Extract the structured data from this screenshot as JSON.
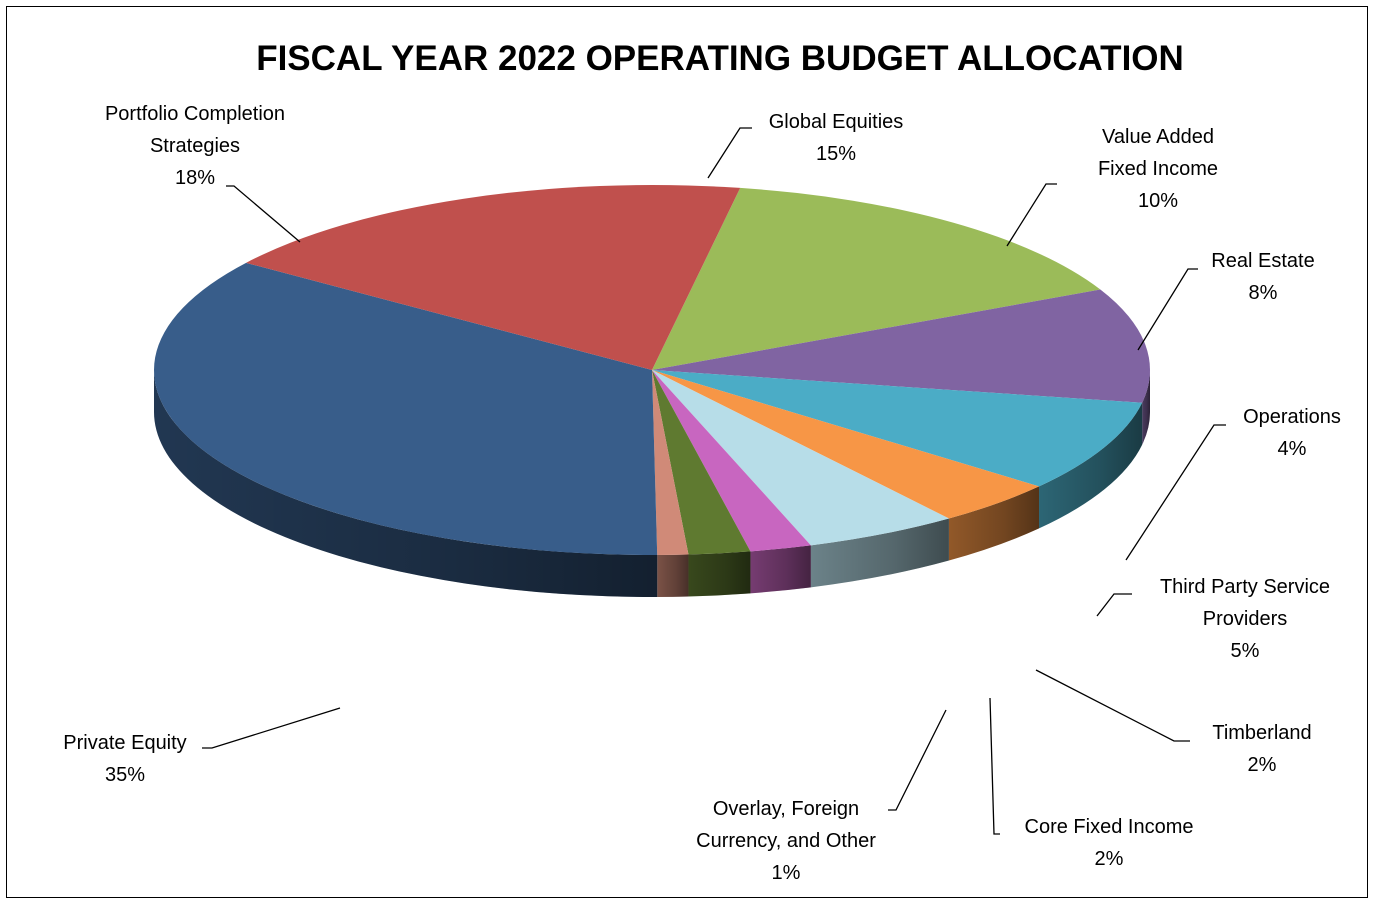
{
  "chart_data": {
    "type": "pie",
    "title": "FISCAL YEAR 2022 OPERATING BUDGET ALLOCATION",
    "slices": [
      {
        "label": "Global Equities",
        "percent_label": "15%",
        "value": 15,
        "color": "#9bbb59"
      },
      {
        "label": "Value Added Fixed Income",
        "percent_label": "10%",
        "value": 10,
        "color": "#8064a2"
      },
      {
        "label": "Real Estate",
        "percent_label": "8%",
        "value": 8,
        "color": "#4bacc6"
      },
      {
        "label": "Operations",
        "percent_label": "4%",
        "value": 4,
        "color": "#f79646"
      },
      {
        "label": "Third Party Service Providers",
        "percent_label": "5%",
        "value": 5,
        "color": "#b7dde8"
      },
      {
        "label": "Timberland",
        "percent_label": "2%",
        "value": 2,
        "color": "#c866c0"
      },
      {
        "label": "Core Fixed Income",
        "percent_label": "2%",
        "value": 2,
        "color": "#5f7a30"
      },
      {
        "label": "Overlay, Foreign Currency, and Other",
        "percent_label": "1%",
        "value": 1,
        "color": "#d08a78"
      },
      {
        "label": "Private Equity",
        "percent_label": "35%",
        "value": 35,
        "color": "#385d8a"
      },
      {
        "label": "Portfolio Completion Strategies",
        "percent_label": "18%",
        "value": 18,
        "color": "#c0504d"
      }
    ],
    "legend": "none"
  }
}
